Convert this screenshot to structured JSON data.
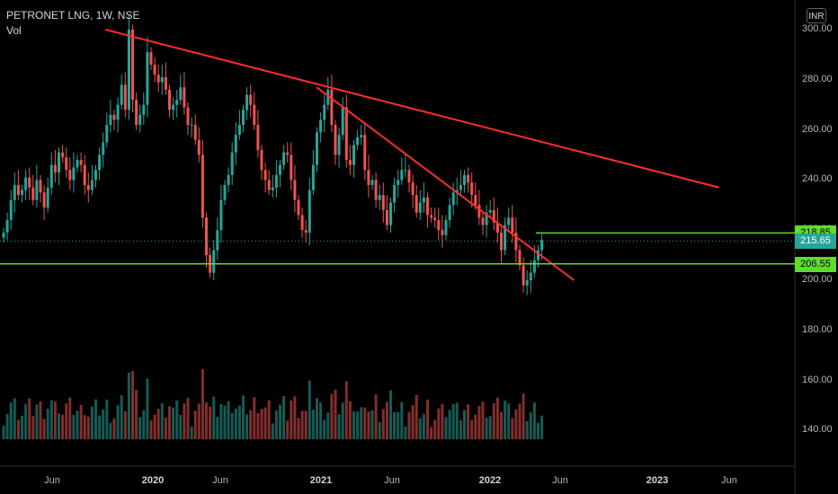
{
  "legend": {
    "symbol": "PETRONET LNG, 1W, NSE",
    "volume_label": "Vol"
  },
  "currency": "INR",
  "colors": {
    "up": "#26a69a",
    "down": "#ef5350",
    "trendline": "#ff2d2d",
    "level_line": "#5ddc2a",
    "last_price_badge": "#26a69a"
  },
  "price_labels": {
    "resistance": "218.85",
    "last": "215.65",
    "support": "206.55"
  },
  "chart_data": {
    "type": "candlestick",
    "y_axis": {
      "ticks": [
        "300.00",
        "280.00",
        "260.00",
        "240.00",
        "220.00",
        "200.00",
        "180.00",
        "160.00",
        "140.00"
      ],
      "range": [
        125,
        305
      ]
    },
    "x_axis": {
      "ticks": [
        "Jun",
        "2020",
        "Jun",
        "2021",
        "Jun",
        "2022",
        "Jun",
        "2023",
        "Jun"
      ],
      "range": [
        "2019-03-16",
        "2023-09-30"
      ]
    },
    "candles_weekly_close": [
      219,
      224,
      232,
      238,
      234,
      236,
      241,
      237,
      232,
      240,
      235,
      229,
      237,
      246,
      243,
      251,
      249,
      244,
      240,
      245,
      248,
      246,
      238,
      236,
      240,
      244,
      250,
      255,
      262,
      266,
      264,
      270,
      278,
      268,
      300,
      272,
      262,
      266,
      270,
      291,
      286,
      282,
      279,
      281,
      276,
      268,
      270,
      272,
      277,
      269,
      262,
      262,
      256,
      250,
      225,
      210,
      203,
      212,
      220,
      232,
      238,
      242,
      251,
      258,
      262,
      268,
      274,
      270,
      262,
      252,
      244,
      240,
      236,
      237,
      242,
      246,
      251,
      250,
      240,
      232,
      226,
      220,
      219,
      236,
      246,
      259,
      264,
      270,
      276,
      262,
      250,
      258,
      269,
      248,
      246,
      254,
      257,
      258,
      244,
      238,
      240,
      232,
      234,
      228,
      222,
      231,
      238,
      240,
      244,
      244,
      239,
      234,
      227,
      231,
      233,
      226,
      225,
      224,
      220,
      218,
      224,
      230,
      235,
      236,
      238,
      242,
      239,
      234,
      230,
      225,
      222,
      227,
      228,
      223,
      219,
      212,
      222,
      225,
      219,
      212,
      206,
      198,
      200,
      203,
      208,
      212,
      216
    ],
    "volume_note": "weekly volume bars at bottom",
    "trendlines": [
      {
        "from": [
          "2019-10-26",
          300
        ],
        "to": [
          "2023-05-20",
          237
        ]
      },
      {
        "from": [
          "2021-01-16",
          277
        ],
        "to": [
          "2022-07-16",
          200
        ]
      }
    ],
    "horizontal_levels": [
      218.85,
      206.55
    ],
    "last_price": 215.65
  }
}
